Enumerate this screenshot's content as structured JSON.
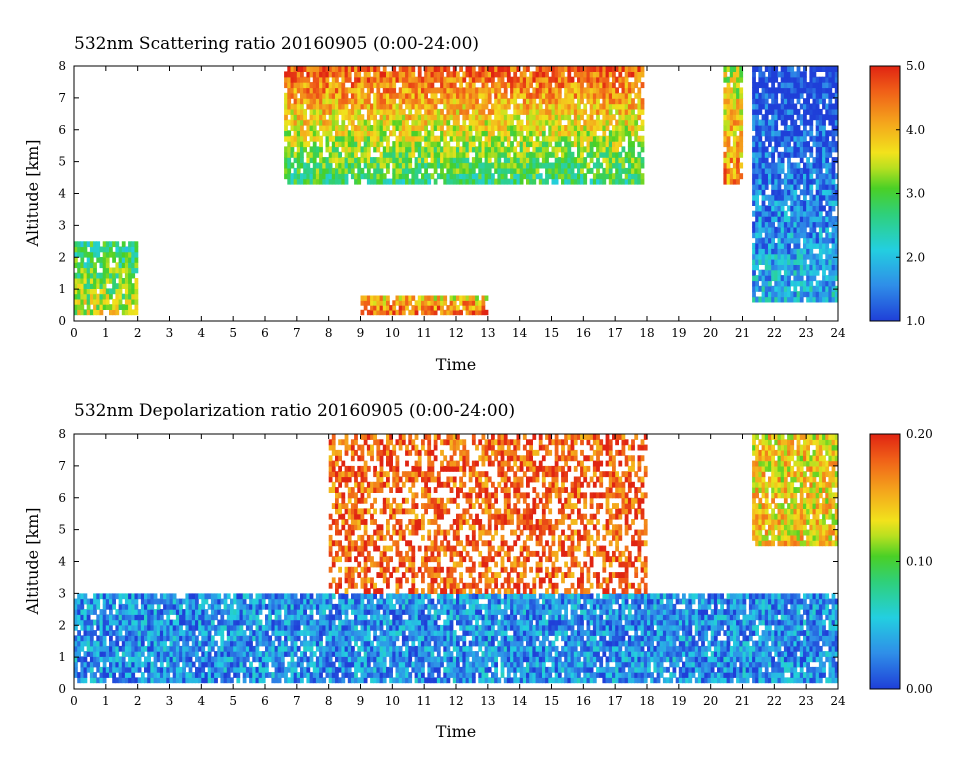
{
  "chart_data": [
    {
      "type": "heatmap",
      "title": "532nm Scattering ratio  20160905 (0:00-24:00)",
      "xlabel": "Time",
      "ylabel": "Altitude [km]",
      "x_ticks": [
        "0",
        "1",
        "2",
        "3",
        "4",
        "5",
        "6",
        "7",
        "8",
        "9",
        "10",
        "11",
        "12",
        "13",
        "14",
        "15",
        "16",
        "17",
        "18",
        "19",
        "20",
        "21",
        "22",
        "23",
        "24"
      ],
      "y_ticks": [
        "0",
        "1",
        "2",
        "3",
        "4",
        "5",
        "6",
        "7",
        "8"
      ],
      "xlim": [
        0,
        24
      ],
      "ylim": [
        0,
        8
      ],
      "colorbar": {
        "min": 1.0,
        "max": 5.0,
        "tick_labels": [
          "1.0",
          "2.0",
          "3.0",
          "4.0",
          "5.0"
        ],
        "colormap": "rainbow (blue-cyan-green-yellow-orange-red)"
      },
      "features": [
        {
          "desc": "boundary layer aerosol",
          "t0": 0,
          "t1": 2,
          "z0": 0.2,
          "z1": 2.5,
          "level": 3.5
        },
        {
          "desc": "near-surface enhanced layer",
          "t0": 9,
          "t1": 13,
          "z0": 0.2,
          "z1": 0.8,
          "level": 4.6
        },
        {
          "desc": "upper cloud",
          "t0": 6.6,
          "t1": 17.9,
          "z0": 4.3,
          "z1": 8.0,
          "level": 4.5
        },
        {
          "desc": "cloud",
          "t0": 20.4,
          "t1": 21.0,
          "z0": 4.3,
          "z1": 8.0,
          "level": 4.3
        },
        {
          "desc": "aerosol layer",
          "t0": 21.3,
          "t1": 24,
          "z0": 0.6,
          "z1": 8.0,
          "level": 1.9
        }
      ]
    },
    {
      "type": "heatmap",
      "title": "532nm Depolarization ratio  20160905 (0:00-24:00)",
      "xlabel": "Time",
      "ylabel": "Altitude [km]",
      "x_ticks": [
        "0",
        "1",
        "2",
        "3",
        "4",
        "5",
        "6",
        "7",
        "8",
        "9",
        "10",
        "11",
        "12",
        "13",
        "14",
        "15",
        "16",
        "17",
        "18",
        "19",
        "20",
        "21",
        "22",
        "23",
        "24"
      ],
      "y_ticks": [
        "0",
        "1",
        "2",
        "3",
        "4",
        "5",
        "6",
        "7",
        "8"
      ],
      "xlim": [
        0,
        24
      ],
      "ylim": [
        0,
        8
      ],
      "colorbar": {
        "min": 0.0,
        "max": 0.2,
        "tick_labels": [
          "0.00",
          "0.10",
          "0.20"
        ],
        "colormap": "rainbow (blue-cyan-green-yellow-orange-red)"
      },
      "features": [
        {
          "desc": "low depolarization boundary layer",
          "t0": 0,
          "t1": 24,
          "z0": 0.2,
          "z1": 3.0,
          "level": 0.03
        },
        {
          "desc": "noisy high depolarization region",
          "t0": 8,
          "t1": 18,
          "z0": 3.0,
          "z1": 8.0,
          "level": 0.18
        },
        {
          "desc": "high depolarization aloft",
          "t0": 21.3,
          "t1": 24,
          "z0": 4.5,
          "z1": 8.0,
          "level": 0.14
        }
      ]
    }
  ]
}
